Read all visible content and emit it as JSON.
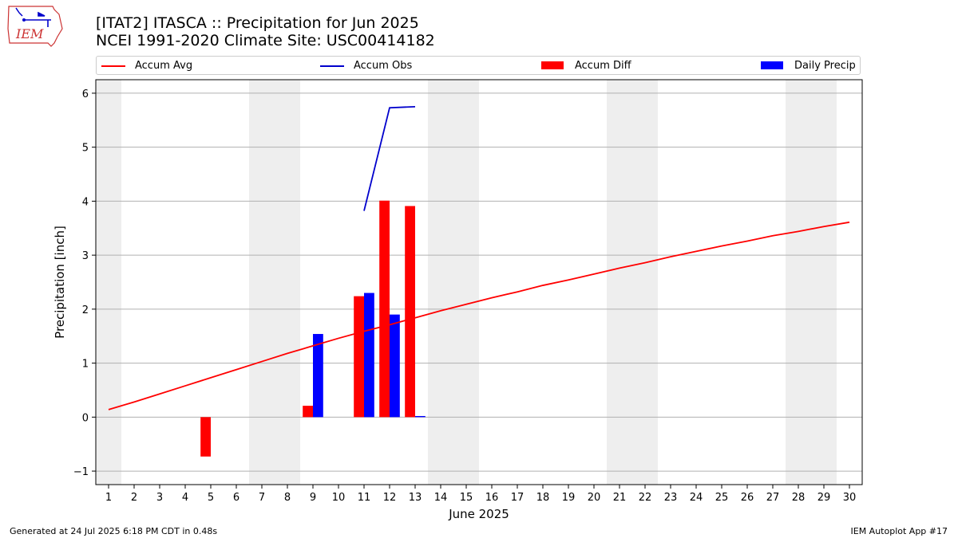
{
  "header": {
    "title": "[ITAT2] ITASCA :: Precipitation for Jun 2025",
    "subtitle": "NCEI 1991-2020 Climate Site: USC00414182",
    "logo_text": "IEM"
  },
  "footer": {
    "generated": "Generated at 24 Jul 2025 6:18 PM CDT in 0.48s",
    "app": "IEM Autoplot App #17"
  },
  "colors": {
    "avg": "#ff0000",
    "obs": "#0000cc",
    "diff": "#ff0000",
    "daily": "#0000ff",
    "weekend_band": "#eeeeee",
    "grid": "#b0b0b0"
  },
  "chart_data": {
    "type": "bar",
    "xlabel": "June 2025",
    "ylabel": "Precipitation [inch]",
    "xlim": [
      0.5,
      30.5
    ],
    "ylim": [
      -1.25,
      6.25
    ],
    "x_ticks": [
      1,
      2,
      3,
      4,
      5,
      6,
      7,
      8,
      9,
      10,
      11,
      12,
      13,
      14,
      15,
      16,
      17,
      18,
      19,
      20,
      21,
      22,
      23,
      24,
      25,
      26,
      27,
      28,
      29,
      30
    ],
    "y_ticks": [
      -1,
      0,
      1,
      2,
      3,
      4,
      5,
      6
    ],
    "grid": "y",
    "legend": {
      "placement": "top",
      "entries": [
        {
          "label": "Accum Avg",
          "kind": "line",
          "color": "#ff0000"
        },
        {
          "label": "Accum Obs",
          "kind": "line",
          "color": "#0000cc"
        },
        {
          "label": "Accum Diff",
          "kind": "bar",
          "color": "#ff0000"
        },
        {
          "label": "Daily Precip",
          "kind": "bar",
          "color": "#0000ff"
        }
      ]
    },
    "shaded_days": [
      [
        0.5,
        1.5
      ],
      [
        6.5,
        8.5
      ],
      [
        13.5,
        15.5
      ],
      [
        20.5,
        22.5
      ],
      [
        27.5,
        29.5
      ]
    ],
    "series": [
      {
        "name": "Accum Avg",
        "kind": "line",
        "x": [
          1,
          2,
          3,
          4,
          5,
          6,
          7,
          8,
          9,
          10,
          11,
          12,
          13,
          14,
          15,
          16,
          17,
          18,
          19,
          20,
          21,
          22,
          23,
          24,
          25,
          26,
          27,
          28,
          29,
          30
        ],
        "values": [
          0.14,
          0.28,
          0.43,
          0.58,
          0.73,
          0.88,
          1.03,
          1.18,
          1.32,
          1.46,
          1.59,
          1.71,
          1.84,
          1.97,
          2.09,
          2.21,
          2.32,
          2.44,
          2.54,
          2.65,
          2.76,
          2.86,
          2.97,
          3.07,
          3.17,
          3.26,
          3.36,
          3.44,
          3.53,
          3.61
        ]
      },
      {
        "name": "Accum Obs",
        "kind": "line",
        "x": [
          11,
          12,
          13
        ],
        "values": [
          3.82,
          5.73,
          5.75
        ]
      },
      {
        "name": "Accum Diff",
        "kind": "bar",
        "x": [
          5,
          9,
          11,
          12,
          13
        ],
        "values": [
          -0.73,
          0.21,
          2.24,
          4.01,
          3.91
        ]
      },
      {
        "name": "Daily Precip",
        "kind": "bar",
        "x": [
          9,
          11,
          12,
          13
        ],
        "values": [
          1.54,
          2.3,
          1.9,
          0.02
        ]
      }
    ]
  }
}
